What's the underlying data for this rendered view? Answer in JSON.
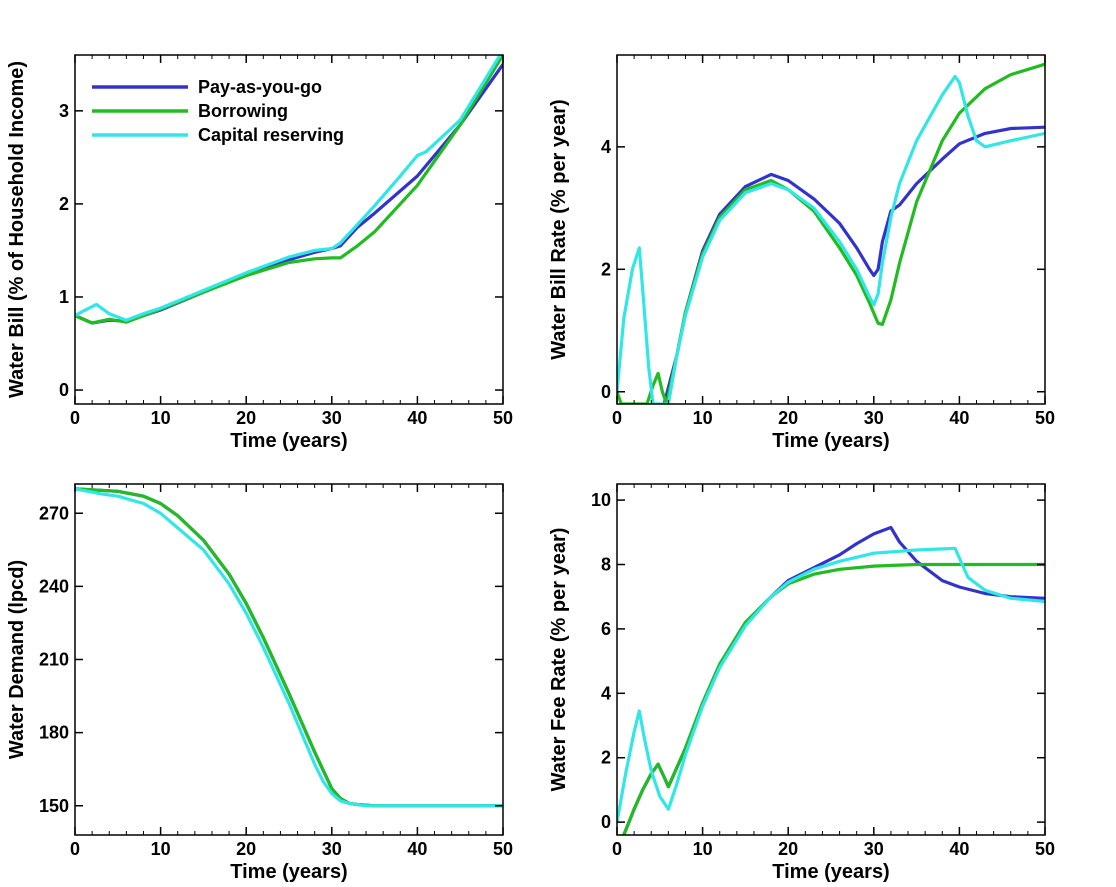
{
  "colors": {
    "pay_as_you_go": "#3333cc",
    "borrowing": "#22bb22",
    "capital_reserving": "#33e6e6"
  },
  "legend": {
    "placement": "top-left of top-left panel",
    "entries": [
      {
        "label": "Pay-as-you-go",
        "color": "#3333cc"
      },
      {
        "label": "Borrowing",
        "color": "#22bb22"
      },
      {
        "label": "Capital reserving",
        "color": "#33e6e6"
      }
    ]
  },
  "chart_data": [
    {
      "type": "line",
      "panel": "top-left",
      "xlabel": "Time (years)",
      "ylabel": "Water Bill (% of Household Income)",
      "xlim": [
        0,
        50
      ],
      "ylim": [
        -0.15,
        3.6
      ],
      "xticks": [
        0,
        10,
        20,
        30,
        40,
        50
      ],
      "yticks": [
        0,
        1,
        2,
        3
      ],
      "series": [
        {
          "name": "Pay-as-you-go",
          "color": "#3333cc",
          "x": [
            0,
            2,
            4,
            6,
            8,
            10,
            15,
            20,
            25,
            28,
            30,
            31,
            33,
            35,
            40,
            45,
            50
          ],
          "y": [
            0.8,
            0.72,
            0.75,
            0.74,
            0.8,
            0.86,
            1.05,
            1.24,
            1.4,
            1.48,
            1.52,
            1.55,
            1.75,
            1.9,
            2.3,
            2.85,
            3.5
          ]
        },
        {
          "name": "Borrowing",
          "color": "#22bb22",
          "x": [
            0,
            2,
            4,
            6,
            8,
            10,
            15,
            20,
            25,
            28,
            30,
            31,
            33,
            35,
            40,
            45,
            50
          ],
          "y": [
            0.8,
            0.72,
            0.76,
            0.73,
            0.8,
            0.87,
            1.05,
            1.23,
            1.37,
            1.41,
            1.42,
            1.42,
            1.55,
            1.7,
            2.2,
            2.85,
            3.6
          ]
        },
        {
          "name": "Capital reserving",
          "color": "#33e6e6",
          "x": [
            0,
            1,
            2.5,
            4,
            6,
            8,
            10,
            15,
            20,
            25,
            28,
            30,
            31,
            33,
            35,
            38,
            40,
            41,
            45,
            50
          ],
          "y": [
            0.8,
            0.85,
            0.92,
            0.82,
            0.75,
            0.82,
            0.88,
            1.07,
            1.26,
            1.43,
            1.5,
            1.52,
            1.58,
            1.78,
            1.98,
            2.3,
            2.52,
            2.56,
            2.9,
            3.65
          ]
        }
      ]
    },
    {
      "type": "line",
      "panel": "top-right",
      "xlabel": "Time (years)",
      "ylabel": "Water Bill Rate (% per year)",
      "xlim": [
        0,
        50
      ],
      "ylim": [
        -0.2,
        5.5
      ],
      "xticks": [
        0,
        10,
        20,
        30,
        40,
        50
      ],
      "yticks": [
        0,
        2,
        4
      ],
      "series": [
        {
          "name": "Pay-as-you-go",
          "color": "#3333cc",
          "x": [
            5.5,
            7,
            8,
            10,
            12,
            15,
            18,
            20,
            23,
            26,
            28,
            29.5,
            30,
            30.5,
            31,
            32,
            33,
            35,
            38,
            40,
            43,
            46,
            50
          ],
          "y": [
            -0.2,
            0.6,
            1.3,
            2.3,
            2.9,
            3.35,
            3.55,
            3.45,
            3.15,
            2.75,
            2.35,
            2.0,
            1.9,
            2.0,
            2.45,
            2.95,
            3.05,
            3.4,
            3.8,
            4.05,
            4.22,
            4.3,
            4.32
          ]
        },
        {
          "name": "Borrowing",
          "color": "#22bb22",
          "x": [
            0,
            0.5,
            3.5,
            4.2,
            4.8,
            5.3,
            5.8,
            7,
            8,
            10,
            12,
            15,
            18,
            20,
            23,
            26,
            28,
            29.5,
            30.5,
            31,
            32,
            33,
            35,
            38,
            40,
            43,
            46,
            50
          ],
          "y": [
            0.0,
            -0.2,
            -0.2,
            0.1,
            0.3,
            0.0,
            -0.2,
            0.6,
            1.3,
            2.25,
            2.85,
            3.3,
            3.45,
            3.3,
            2.95,
            2.35,
            1.9,
            1.45,
            1.12,
            1.1,
            1.5,
            2.1,
            3.1,
            4.1,
            4.55,
            4.95,
            5.18,
            5.35
          ]
        },
        {
          "name": "Capital reserving",
          "color": "#33e6e6",
          "x": [
            0,
            0.8,
            1.8,
            2.6,
            3.1,
            3.7,
            4.2,
            6,
            7,
            8,
            10,
            12,
            15,
            18,
            20,
            23,
            26,
            28,
            29.5,
            30,
            30.5,
            31,
            32,
            33,
            35,
            38,
            39.5,
            40,
            41,
            42,
            43,
            46,
            50
          ],
          "y": [
            0.0,
            1.2,
            2.0,
            2.35,
            1.5,
            0.4,
            -0.2,
            -0.2,
            0.6,
            1.25,
            2.2,
            2.8,
            3.25,
            3.4,
            3.3,
            3.0,
            2.45,
            2.0,
            1.55,
            1.42,
            1.6,
            2.1,
            2.85,
            3.4,
            4.1,
            4.85,
            5.15,
            5.05,
            4.5,
            4.1,
            4.0,
            4.1,
            4.22
          ]
        }
      ]
    },
    {
      "type": "line",
      "panel": "bottom-left",
      "xlabel": "Time (years)",
      "ylabel": "Water Demand (lpcd)",
      "xlim": [
        0,
        50
      ],
      "ylim": [
        138,
        282
      ],
      "xticks": [
        0,
        10,
        20,
        30,
        40,
        50
      ],
      "yticks": [
        150,
        180,
        210,
        240,
        270
      ],
      "series": [
        {
          "name": "Pay-as-you-go",
          "color": "#3333cc",
          "x": [
            0,
            5,
            8,
            10,
            12,
            15,
            18,
            20,
            22,
            25,
            28,
            30,
            31,
            32,
            33,
            35,
            40,
            45,
            50
          ],
          "y": [
            280,
            279,
            277,
            274,
            269,
            259,
            245,
            233,
            219,
            196,
            172,
            157,
            153,
            151,
            150.5,
            150,
            150,
            150,
            150
          ]
        },
        {
          "name": "Borrowing",
          "color": "#22bb22",
          "x": [
            0,
            5,
            8,
            10,
            12,
            15,
            18,
            20,
            22,
            25,
            28,
            30,
            31,
            32,
            33,
            35,
            40,
            45,
            50
          ],
          "y": [
            280,
            279,
            277,
            274,
            269,
            259,
            245,
            233,
            219,
            196,
            172,
            157,
            153,
            151,
            150.5,
            150,
            150,
            150,
            150
          ]
        },
        {
          "name": "Capital reserving",
          "color": "#33e6e6",
          "x": [
            0,
            3,
            5,
            8,
            10,
            12,
            15,
            18,
            20,
            22,
            25,
            28,
            29,
            30,
            31,
            32,
            34,
            40,
            45,
            50
          ],
          "y": [
            280,
            278,
            277,
            274,
            270,
            264,
            255,
            241,
            229,
            215,
            192,
            167,
            160,
            155,
            152,
            151,
            150,
            150,
            150,
            150
          ]
        }
      ]
    },
    {
      "type": "line",
      "panel": "bottom-right",
      "xlabel": "Time (years)",
      "ylabel": "Water Fee Rate (% per year)",
      "xlim": [
        0,
        50
      ],
      "ylim": [
        -0.4,
        10.5
      ],
      "xticks": [
        0,
        10,
        20,
        30,
        40,
        50
      ],
      "yticks": [
        0,
        2,
        4,
        6,
        8,
        10
      ],
      "series": [
        {
          "name": "Pay-as-you-go",
          "color": "#3333cc",
          "x": [
            0.8,
            2,
            3,
            4,
            4.8,
            5.5,
            6,
            8,
            10,
            12,
            15,
            18,
            20,
            23,
            26,
            28,
            30,
            32,
            33,
            35,
            38,
            40,
            43,
            46,
            50
          ],
          "y": [
            -0.4,
            0.4,
            1.0,
            1.5,
            1.8,
            1.4,
            1.1,
            2.3,
            3.7,
            4.9,
            6.2,
            7.0,
            7.5,
            7.9,
            8.3,
            8.65,
            8.95,
            9.15,
            8.7,
            8.1,
            7.5,
            7.3,
            7.1,
            7.0,
            6.95
          ]
        },
        {
          "name": "Borrowing",
          "color": "#22bb22",
          "x": [
            0.8,
            2,
            3,
            4,
            4.8,
            5.5,
            6,
            8,
            10,
            12,
            15,
            18,
            20,
            23,
            26,
            30,
            35,
            40,
            45,
            50
          ],
          "y": [
            -0.4,
            0.4,
            1.0,
            1.5,
            1.8,
            1.4,
            1.1,
            2.3,
            3.7,
            4.9,
            6.2,
            7.0,
            7.4,
            7.7,
            7.85,
            7.95,
            8.0,
            8.0,
            8.0,
            8.0
          ]
        },
        {
          "name": "Capital reserving",
          "color": "#33e6e6",
          "x": [
            0,
            1,
            2,
            2.6,
            3.2,
            4,
            5,
            6,
            7,
            8,
            10,
            12,
            15,
            18,
            20,
            23,
            26,
            30,
            35,
            39.5,
            40,
            41,
            43,
            46,
            50
          ],
          "y": [
            0.0,
            1.5,
            2.8,
            3.45,
            2.6,
            1.6,
            0.8,
            0.4,
            1.2,
            2.1,
            3.6,
            4.8,
            6.1,
            7.0,
            7.45,
            7.85,
            8.1,
            8.35,
            8.45,
            8.5,
            8.2,
            7.6,
            7.2,
            6.95,
            6.85
          ]
        }
      ]
    }
  ]
}
